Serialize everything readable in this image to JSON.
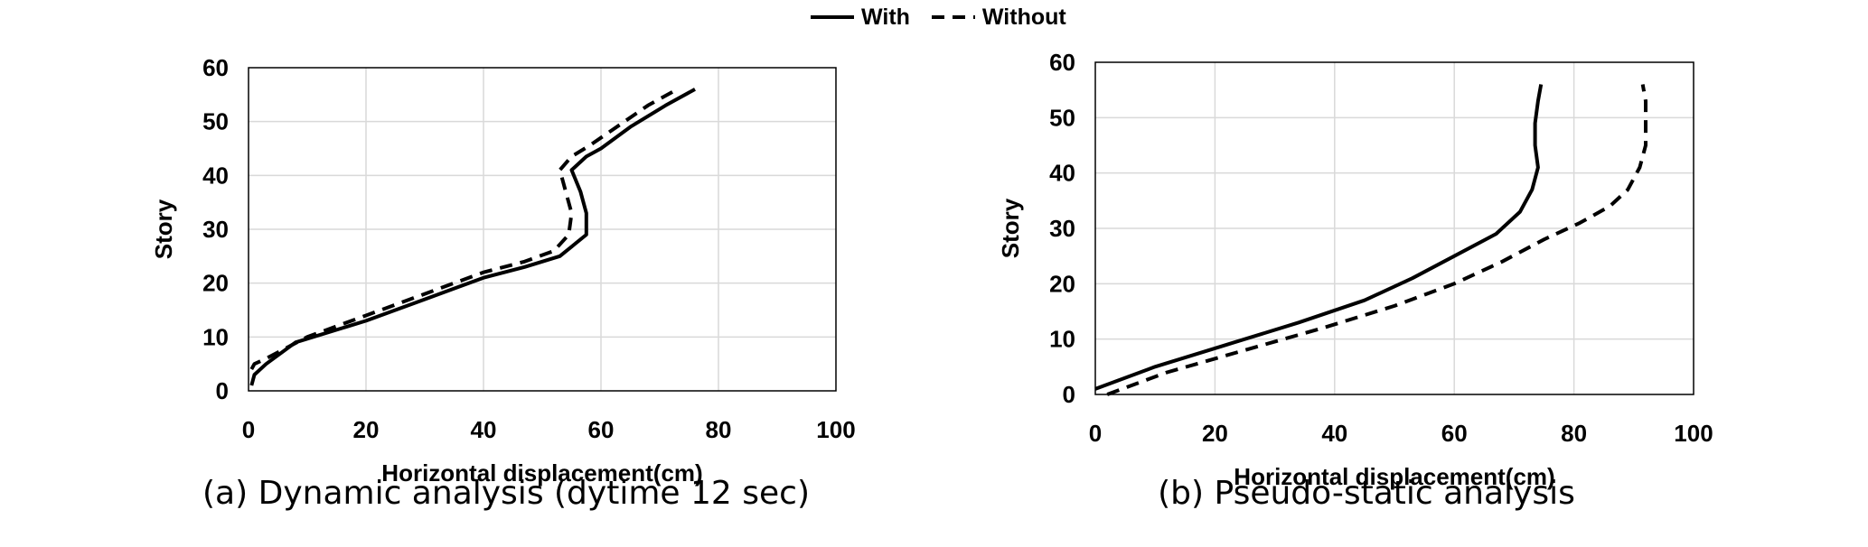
{
  "legend": {
    "with_label": "With",
    "without_label": "Without"
  },
  "chart_data": [
    {
      "type": "line",
      "caption": "(a) Dynamic analysis (dytime 12 sec)",
      "xlabel": "Horizontal displacement(cm)",
      "ylabel": "Story",
      "xlim": [
        0,
        100
      ],
      "ylim": [
        0,
        60
      ],
      "xticks": [
        0,
        20,
        40,
        60,
        80,
        100
      ],
      "yticks": [
        0,
        10,
        20,
        30,
        40,
        50,
        60
      ],
      "grid": true,
      "legend_position": "top-center",
      "series": [
        {
          "name": "With",
          "style": "solid",
          "points": [
            [
              0.5,
              1
            ],
            [
              1,
              3
            ],
            [
              3,
              5
            ],
            [
              8,
              9
            ],
            [
              20,
              13
            ],
            [
              30,
              17
            ],
            [
              40,
              21
            ],
            [
              47,
              23
            ],
            [
              53,
              25
            ],
            [
              57.5,
              29
            ],
            [
              57.5,
              33
            ],
            [
              56.5,
              37
            ],
            [
              55,
              41
            ],
            [
              57.5,
              43.5
            ],
            [
              60,
              45
            ],
            [
              65,
              49
            ],
            [
              71,
              53
            ],
            [
              76,
              56
            ]
          ]
        },
        {
          "name": "Without",
          "style": "dashed",
          "points": [
            [
              0.5,
              4
            ],
            [
              1,
              5
            ],
            [
              3,
              6
            ],
            [
              10,
              10
            ],
            [
              20,
              14
            ],
            [
              30,
              18
            ],
            [
              40,
              22
            ],
            [
              47,
              24
            ],
            [
              52,
              26
            ],
            [
              54.5,
              29
            ],
            [
              55,
              33
            ],
            [
              54,
              37
            ],
            [
              53,
              41
            ],
            [
              55,
              43.5
            ],
            [
              58,
              45.5
            ],
            [
              64,
              50
            ],
            [
              68,
              53
            ],
            [
              73,
              56
            ]
          ]
        }
      ]
    },
    {
      "type": "line",
      "caption": "(b) Pseudo-static analysis",
      "xlabel": "Horizontal displacement(cm)",
      "ylabel": "Story",
      "xlim": [
        0,
        100
      ],
      "ylim": [
        0,
        60
      ],
      "xticks": [
        0,
        20,
        40,
        60,
        80,
        100
      ],
      "yticks": [
        0,
        10,
        20,
        30,
        40,
        50,
        60
      ],
      "grid": true,
      "legend_position": "top-center",
      "series": [
        {
          "name": "With",
          "style": "solid",
          "points": [
            [
              0,
              1
            ],
            [
              10,
              5
            ],
            [
              22,
              9
            ],
            [
              34,
              13
            ],
            [
              45,
              17
            ],
            [
              53,
              21
            ],
            [
              60,
              25
            ],
            [
              67,
              29
            ],
            [
              71,
              33
            ],
            [
              73,
              37
            ],
            [
              74,
              41
            ],
            [
              73.5,
              45
            ],
            [
              73.5,
              49
            ],
            [
              74,
              53
            ],
            [
              74.5,
              56
            ]
          ]
        },
        {
          "name": "Without",
          "style": "dashed",
          "points": [
            [
              2,
              0
            ],
            [
              12,
              4
            ],
            [
              25,
              8
            ],
            [
              38,
              12
            ],
            [
              50,
              16
            ],
            [
              60,
              20
            ],
            [
              68,
              24
            ],
            [
              75,
              28
            ],
            [
              81,
              31
            ],
            [
              86,
              34
            ],
            [
              89,
              37
            ],
            [
              91,
              41
            ],
            [
              92,
              45
            ],
            [
              92,
              49
            ],
            [
              92,
              53
            ],
            [
              91.5,
              56
            ]
          ]
        }
      ]
    }
  ]
}
